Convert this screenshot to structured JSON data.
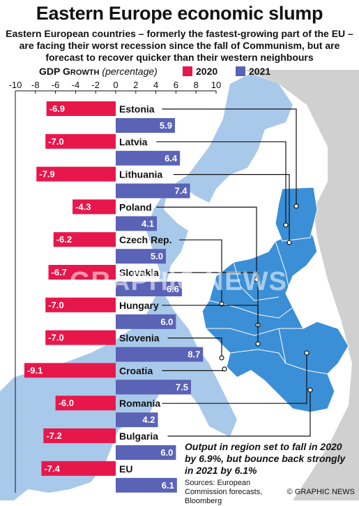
{
  "title": "Eastern Europe economic slump",
  "subtitle": "Eastern European countries – formerly the fastest-growing part of the EU – are facing their worst recession since the fall of Communism, but are forecast to recover quicker than their western neighbours",
  "gdp_label_main": "GDP G",
  "gdp_label_sc": "ROWTH",
  "gdp_label_unit": "(percentage)",
  "legend": [
    {
      "label": "2020",
      "color": "#e8174b"
    },
    {
      "label": "2021",
      "color": "#5a63b6"
    }
  ],
  "note": "Output in region set to fall in 2020 by 6.9%, but bounce back strongly in 2021 by 6.1%",
  "sources": "Sources: European Commission forecasts, Bloomberg",
  "credit": "© GRAPHIC NEWS",
  "watermark": "GRAPHIC NEWS",
  "colors": {
    "y2020": "#e8174b",
    "y2021": "#5a63b6",
    "map_highlight": "#3b8fd6",
    "map_eu": "#a9c9ea",
    "map_other": "#d0d0d0",
    "sea": "#ffffff"
  },
  "chart_data": {
    "type": "bar",
    "orientation": "horizontal",
    "xlim": [
      -10,
      10
    ],
    "xticks": [
      "-10",
      "-8",
      "-6",
      "-4",
      "-2",
      "0",
      "2",
      "4",
      "6",
      "8",
      "10"
    ],
    "categories": [
      "Estonia",
      "Latvia",
      "Lithuania",
      "Poland",
      "Czech Rep.",
      "Slovakia",
      "Hungary",
      "Slovenia",
      "Croatia",
      "Romania",
      "Bulgaria",
      "EU"
    ],
    "series": [
      {
        "name": "2020",
        "values": [
          -6.9,
          -7.0,
          -7.9,
          -4.3,
          -6.2,
          -6.7,
          -7.0,
          -7.0,
          -9.1,
          -6.0,
          -7.2,
          -7.4
        ],
        "labels": [
          "-6.9",
          "-7.0",
          "-7.9",
          "-4.3",
          "-6.2",
          "-6.7",
          "-7.0",
          "-7.0",
          "-9.1",
          "-6.0",
          "-7.2",
          "-7.4"
        ]
      },
      {
        "name": "2021",
        "values": [
          5.9,
          6.4,
          7.4,
          4.1,
          5.0,
          6.6,
          6.0,
          8.7,
          7.5,
          4.2,
          6.0,
          6.1
        ],
        "labels": [
          "5.9",
          "6.4",
          "7.4",
          "4.1",
          "5.0",
          "6.6",
          "6.0",
          "8.7",
          "7.5",
          "4.2",
          "6.0",
          "6.1"
        ]
      }
    ]
  }
}
